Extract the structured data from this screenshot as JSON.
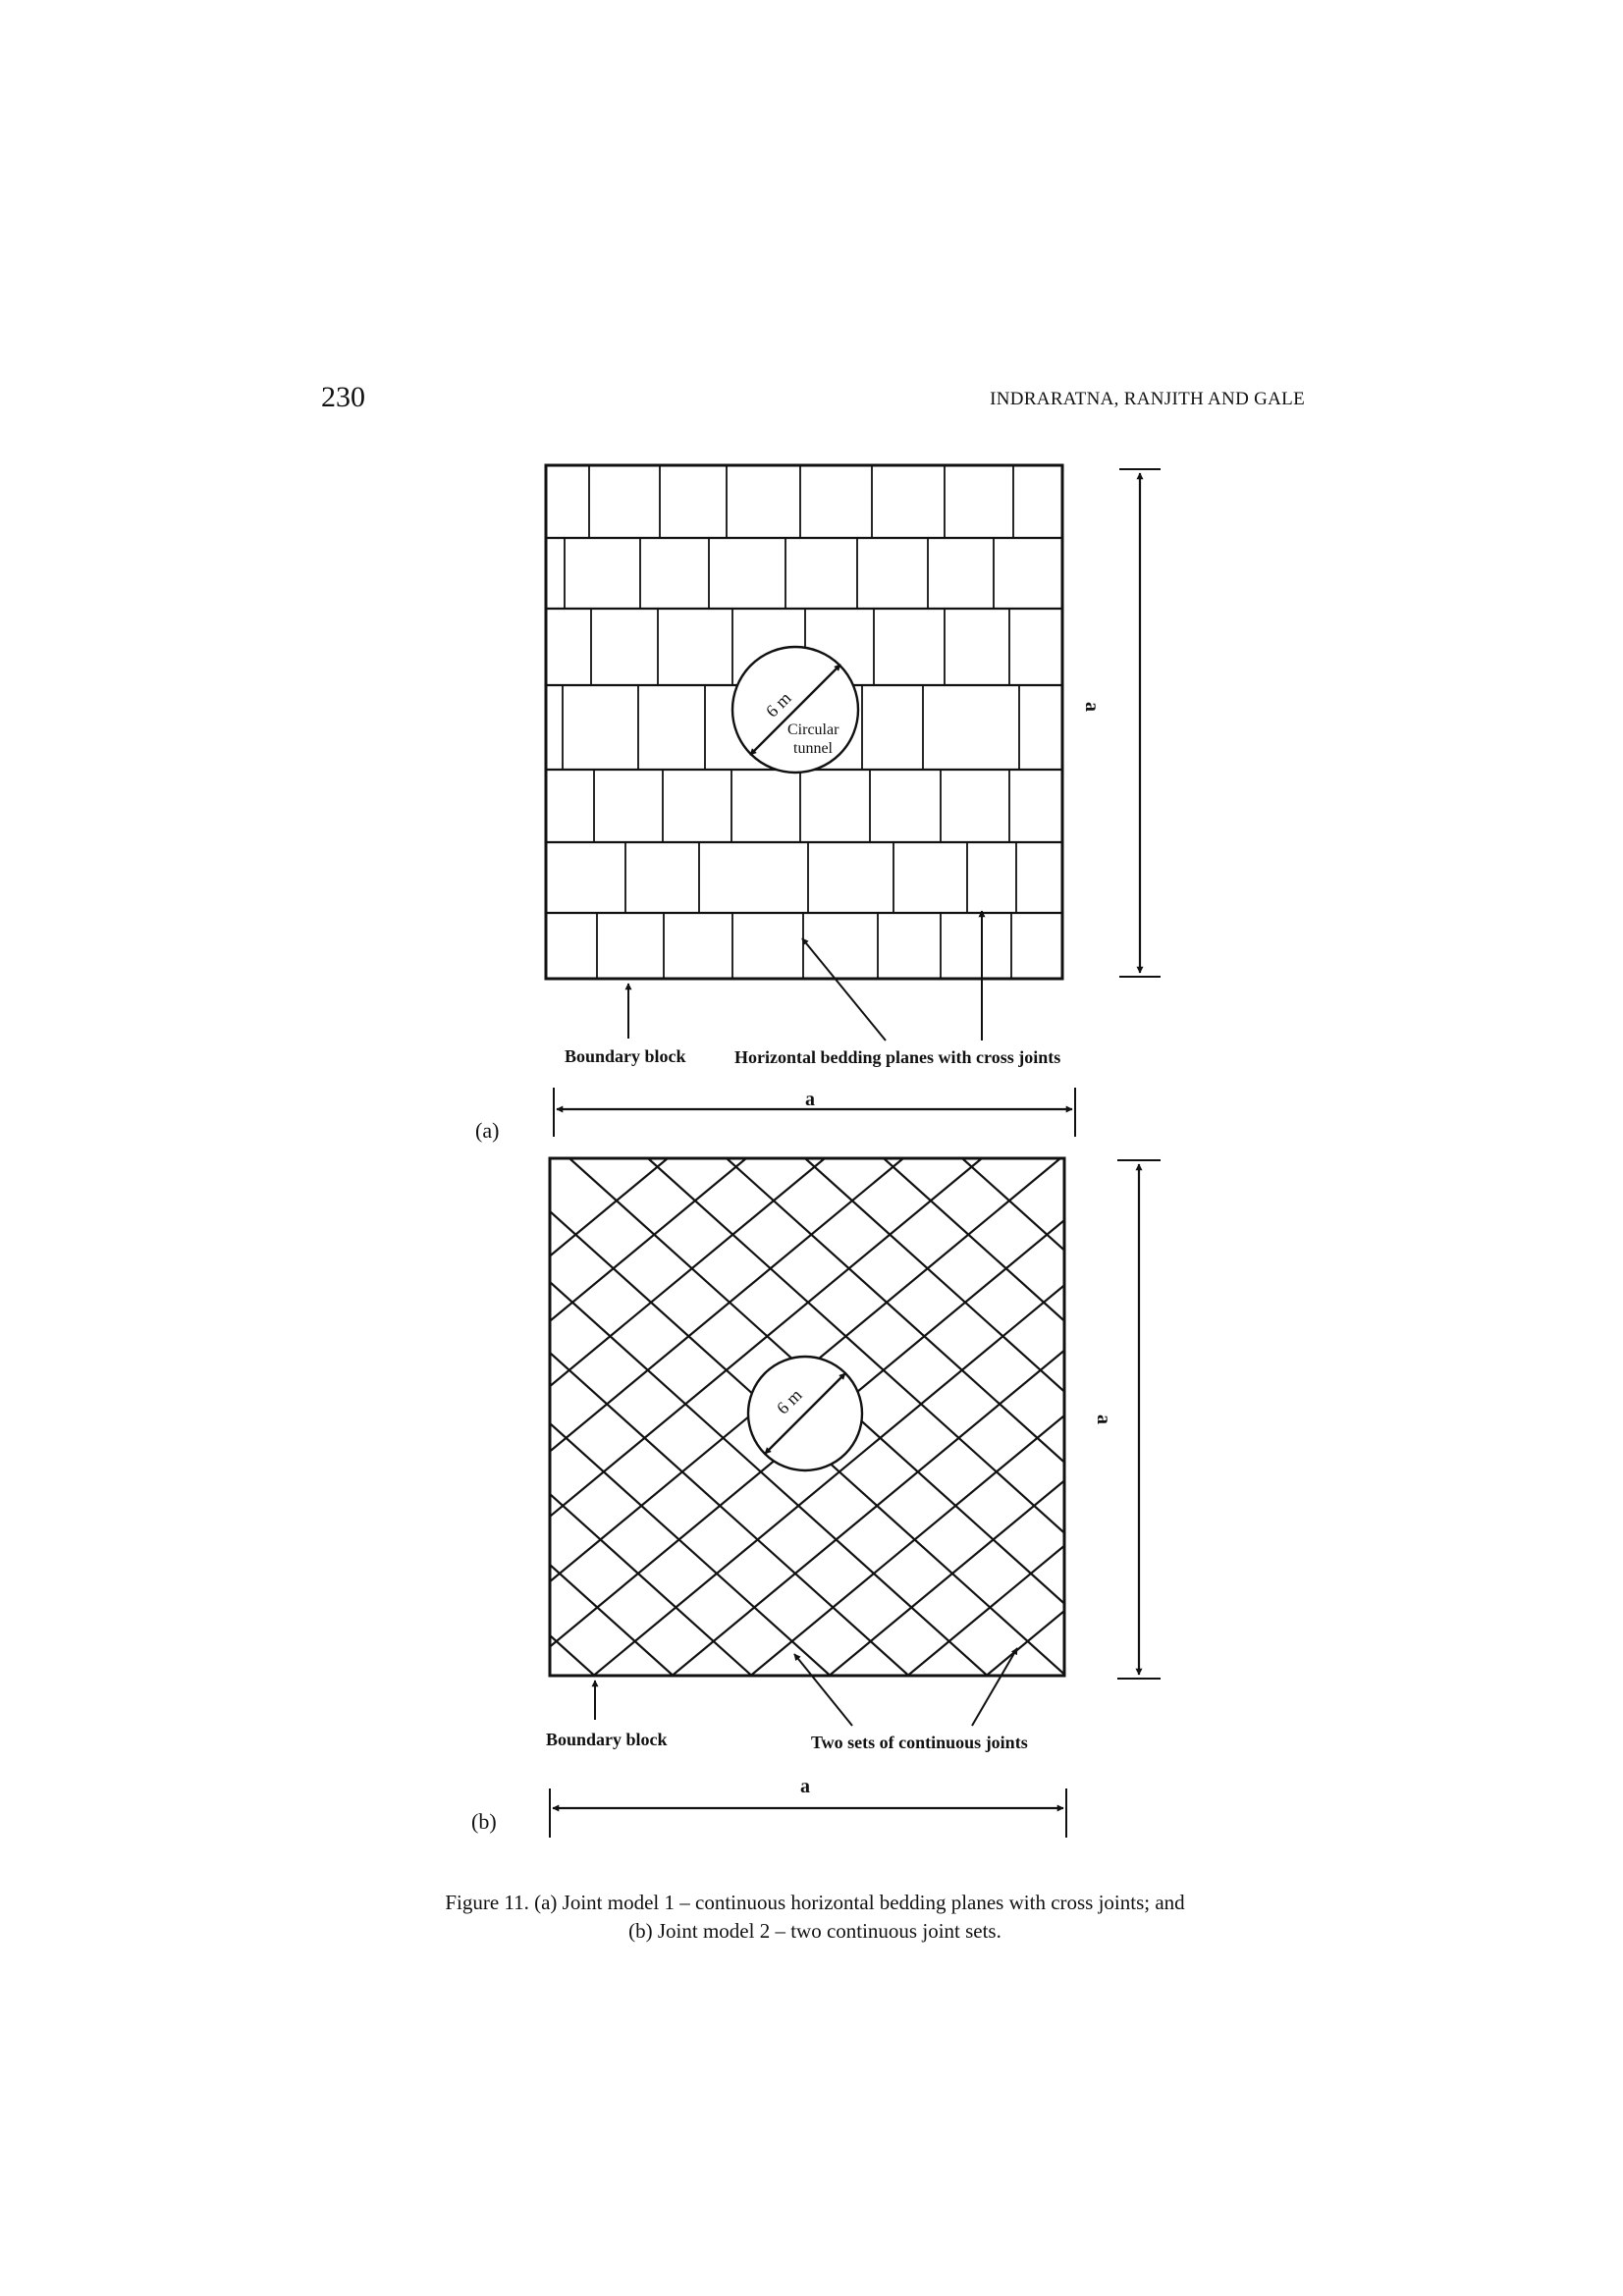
{
  "header": {
    "page_number": "230",
    "running_head": "INDRARATNA, RANJITH AND GALE"
  },
  "figure": {
    "panel_a": {
      "panel_label": "(a)",
      "diameter_label": "6 m",
      "tunnel_label_line1": "Circular",
      "tunnel_label_line2": "tunnel",
      "boundary_label": "Boundary block",
      "joints_label": "Horizontal bedding planes with cross joints",
      "width_label": "a",
      "height_label": "a"
    },
    "panel_b": {
      "panel_label": "(b)",
      "diameter_label": "6 m",
      "boundary_label": "Boundary block",
      "joints_label": "Two sets of continuous joints",
      "width_label": "a",
      "height_label": "a"
    }
  },
  "caption": {
    "line1": "Figure 11. (a) Joint model 1 – continuous horizontal bedding planes with cross joints; and",
    "line2": "(b) Joint model 2 – two continuous joint sets."
  }
}
